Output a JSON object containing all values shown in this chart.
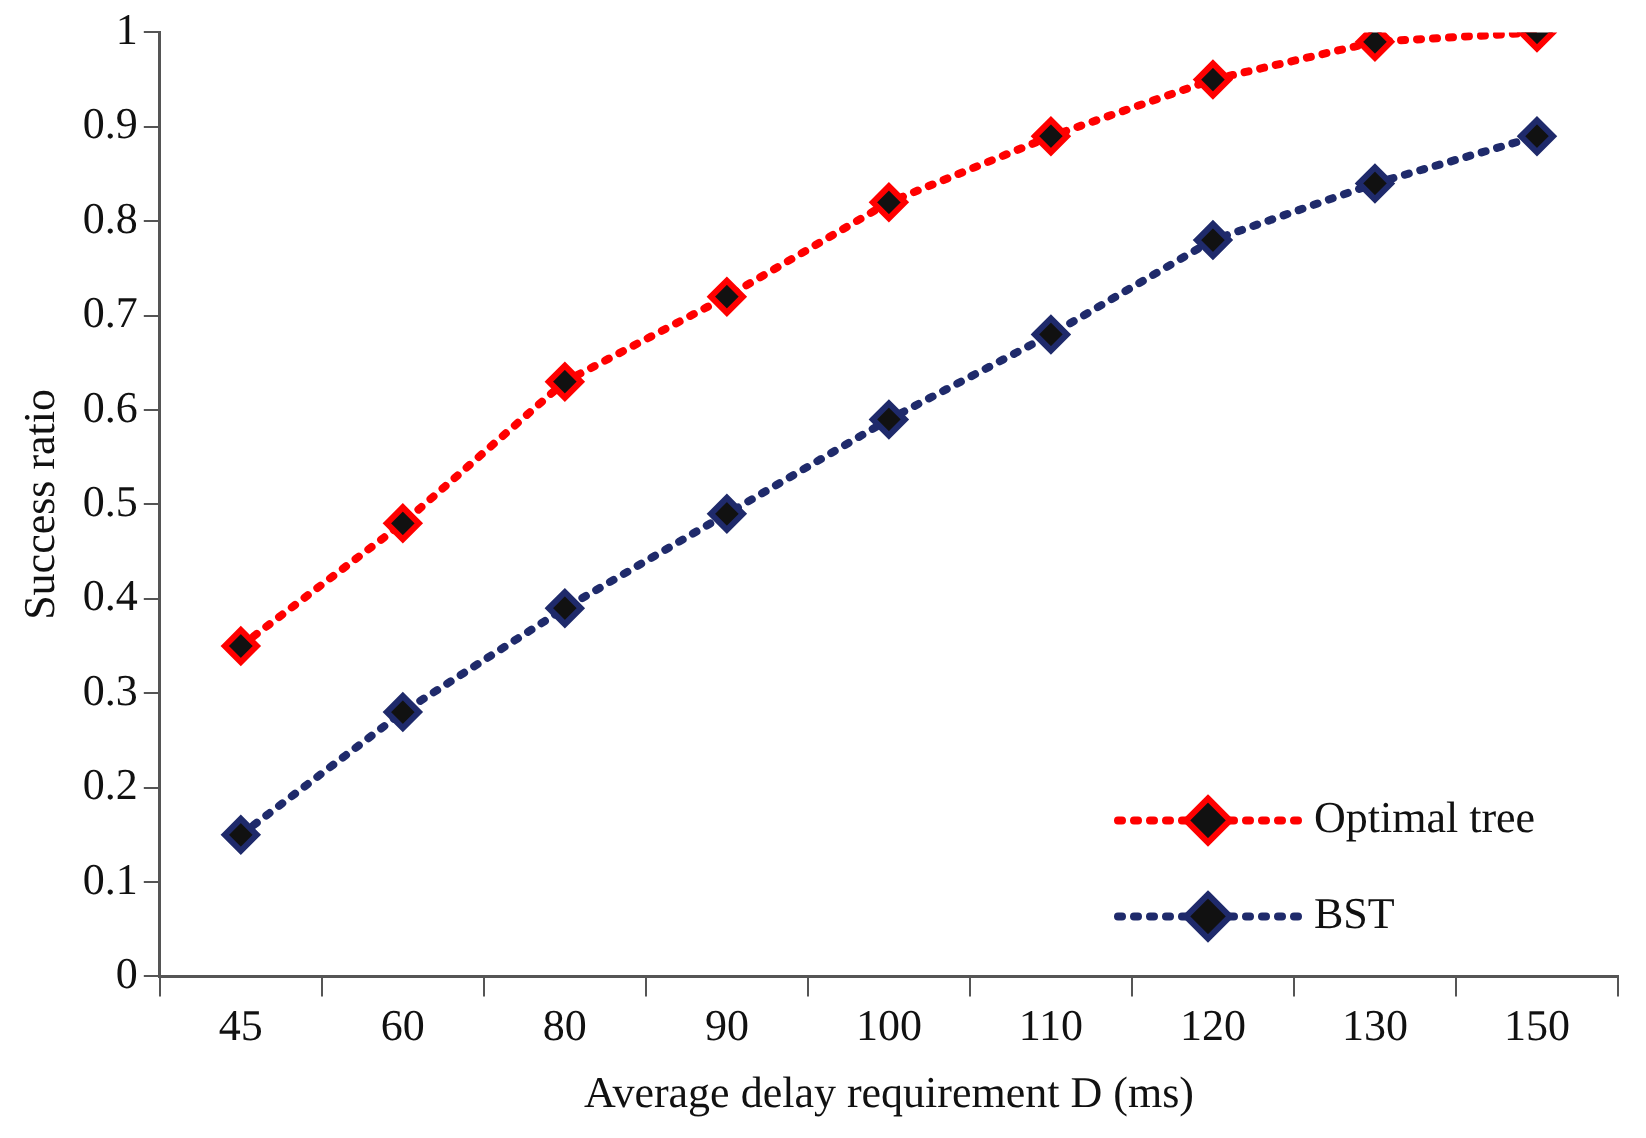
{
  "chart_data": {
    "type": "line",
    "xlabel": "Average delay requirement D (ms)",
    "ylabel": "Success ratio",
    "categories": [
      "45",
      "60",
      "80",
      "90",
      "100",
      "110",
      "120",
      "130",
      "150"
    ],
    "series": [
      {
        "name": "Optimal tree",
        "color": "#ff0000",
        "values": [
          0.35,
          0.48,
          0.63,
          0.72,
          0.82,
          0.89,
          0.95,
          0.99,
          1.0
        ]
      },
      {
        "name": "BST",
        "color": "#1f2a6b",
        "values": [
          0.15,
          0.28,
          0.39,
          0.49,
          0.59,
          0.68,
          0.78,
          0.84,
          0.89
        ]
      }
    ],
    "ylim": [
      0,
      1
    ],
    "yticks": [
      0,
      0.1,
      0.2,
      0.3,
      0.4,
      0.5,
      0.6,
      0.7,
      0.8,
      0.9,
      1
    ],
    "grid": false,
    "legend": "bottom right",
    "marker": "diamond",
    "line_style": "dotted"
  }
}
